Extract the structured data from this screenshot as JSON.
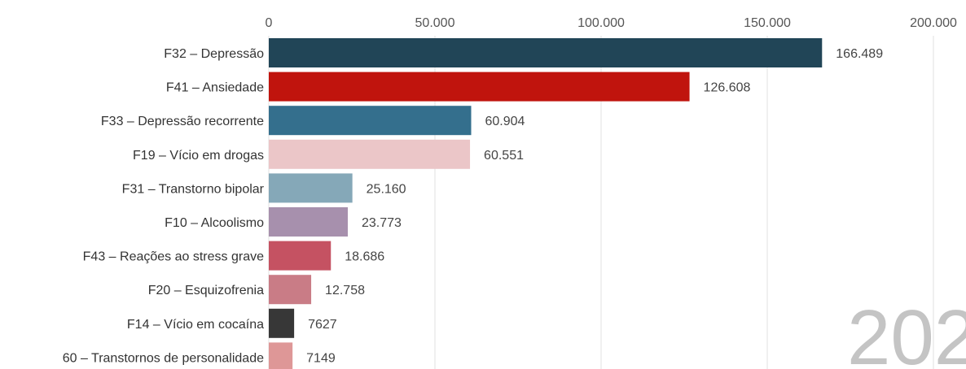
{
  "chart_data": {
    "type": "bar",
    "orientation": "horizontal",
    "categories": [
      "F32 – Depressão",
      "F41 – Ansiedade",
      "F33 – Depressão recorrente",
      "F19 – Vício em drogas",
      "F31 – Transtorno bipolar",
      "F10 – Alcoolismo",
      "F43 – Reações ao stress grave",
      "F20 – Esquizofrenia",
      "F14 – Vício em cocaína",
      "60 – Transtornos de personalidade"
    ],
    "values": [
      166489,
      126608,
      60904,
      60551,
      25160,
      23773,
      18686,
      12758,
      7627,
      7149
    ],
    "value_labels": [
      "166.489",
      "126.608",
      "60.904",
      "60.551",
      "25.160",
      "23.773",
      "18.686",
      "12.758",
      "7627",
      "7149"
    ],
    "colors": [
      "#214557",
      "#c0140d",
      "#346f8d",
      "#ebc6c8",
      "#85a8b8",
      "#a790ad",
      "#c55262",
      "#c97c86",
      "#373737",
      "#de9797"
    ],
    "x_ticks": [
      0,
      50000,
      100000,
      150000,
      200000
    ],
    "x_tick_labels": [
      "0",
      "50.000",
      "100.000",
      "150.000",
      "200.000"
    ],
    "xlim": [
      0,
      200000
    ],
    "axis_position": "top",
    "grid": true,
    "title": "",
    "xlabel": "",
    "ylabel": "",
    "watermark": "202"
  }
}
